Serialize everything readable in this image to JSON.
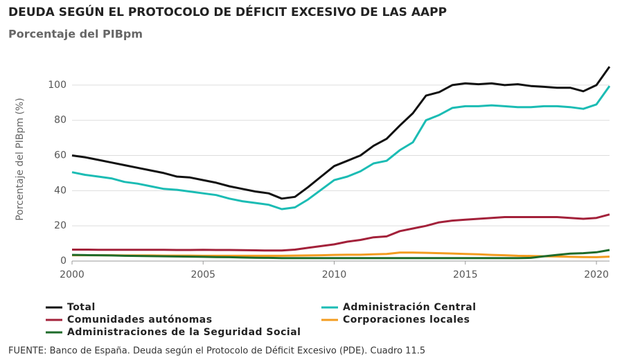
{
  "chart_data": {
    "type": "line",
    "title": "DEUDA SEGÚN EL PROTOCOLO DE DÉFICIT EXCESIVO DE LAS AAPP",
    "subtitle": "Porcentaje del PIBpm",
    "ylabel": "Porcentaje del PIBpm (%)",
    "source": "FUENTE: Banco de España. Deuda según el Protocolo de Déficit Excesivo (PDE). Cuadro 11.5",
    "x": [
      2000,
      2000.5,
      2001,
      2001.5,
      2002,
      2002.5,
      2003,
      2003.5,
      2004,
      2004.5,
      2005,
      2005.5,
      2006,
      2006.5,
      2007,
      2007.5,
      2008,
      2008.5,
      2009,
      2009.5,
      2010,
      2010.5,
      2011,
      2011.5,
      2012,
      2012.5,
      2013,
      2013.5,
      2014,
      2014.5,
      2015,
      2015.5,
      2016,
      2016.5,
      2017,
      2017.5,
      2018,
      2018.5,
      2019,
      2019.5,
      2020,
      2020.5
    ],
    "xlim": [
      2000,
      2020.5
    ],
    "xticks": [
      2000,
      2005,
      2010,
      2015,
      2020
    ],
    "ylim": [
      0,
      112
    ],
    "yticks": [
      0,
      20,
      40,
      60,
      80,
      100
    ],
    "grid": true,
    "series": [
      {
        "name": "Total",
        "color": "#111111",
        "values": [
          60,
          59,
          57.5,
          56,
          54.5,
          53,
          51.5,
          50,
          48,
          47.5,
          46,
          44.5,
          42.5,
          41,
          39.5,
          38.5,
          35.5,
          36.5,
          42,
          48,
          54,
          57,
          60,
          65.5,
          69.5,
          77,
          84,
          94,
          96,
          100,
          101,
          100.5,
          101,
          100,
          100.5,
          99.5,
          99,
          98.5,
          98.5,
          96.5,
          100,
          110.5
        ]
      },
      {
        "name": "Administración Central",
        "color": "#1bbcb4",
        "values": [
          50.5,
          49,
          48,
          47,
          45,
          44,
          42.5,
          41,
          40.5,
          39.5,
          38.5,
          37.5,
          35.5,
          34,
          33,
          32,
          29.5,
          30.5,
          35,
          40.5,
          46,
          48,
          51,
          55.5,
          57,
          63,
          67.5,
          80,
          83,
          87,
          88,
          88,
          88.5,
          88,
          87.5,
          87.5,
          88,
          88,
          87.5,
          86.5,
          89,
          99.5
        ]
      },
      {
        "name": "Comunidades autónomas",
        "color": "#a3213a",
        "values": [
          6.5,
          6.5,
          6.4,
          6.4,
          6.4,
          6.4,
          6.4,
          6.4,
          6.3,
          6.3,
          6.4,
          6.3,
          6.3,
          6.2,
          6.1,
          6,
          6,
          6.5,
          7.5,
          8.5,
          9.5,
          11,
          12,
          13.5,
          14,
          17,
          18.5,
          20,
          22,
          23,
          23.5,
          24,
          24.5,
          25,
          25,
          25,
          25,
          25,
          24.5,
          24,
          24.5,
          26.5
        ]
      },
      {
        "name": "Corporaciones locales",
        "color": "#f39c1f",
        "values": [
          3.3,
          3.3,
          3.3,
          3.3,
          3.2,
          3.2,
          3.2,
          3.1,
          3.1,
          3.1,
          3,
          3,
          3,
          3,
          3,
          3,
          3,
          3.1,
          3.2,
          3.3,
          3.5,
          3.6,
          3.6,
          3.8,
          4,
          4.8,
          4.8,
          4.7,
          4.5,
          4.3,
          4,
          3.8,
          3.5,
          3.3,
          3,
          2.9,
          2.7,
          2.6,
          2.4,
          2.3,
          2.2,
          2.5
        ]
      },
      {
        "name": "Administraciones de la Seguridad Social",
        "color": "#1e6b2a",
        "values": [
          3.5,
          3.4,
          3.3,
          3.2,
          3,
          2.9,
          2.8,
          2.7,
          2.6,
          2.5,
          2.4,
          2.3,
          2.2,
          2,
          1.9,
          1.8,
          1.7,
          1.7,
          1.7,
          1.7,
          1.7,
          1.7,
          1.7,
          1.7,
          1.7,
          1.7,
          1.7,
          1.7,
          1.7,
          1.7,
          1.7,
          1.7,
          1.7,
          1.7,
          1.7,
          1.8,
          2.7,
          3.5,
          4.2,
          4.5,
          5,
          6.3
        ]
      }
    ]
  }
}
